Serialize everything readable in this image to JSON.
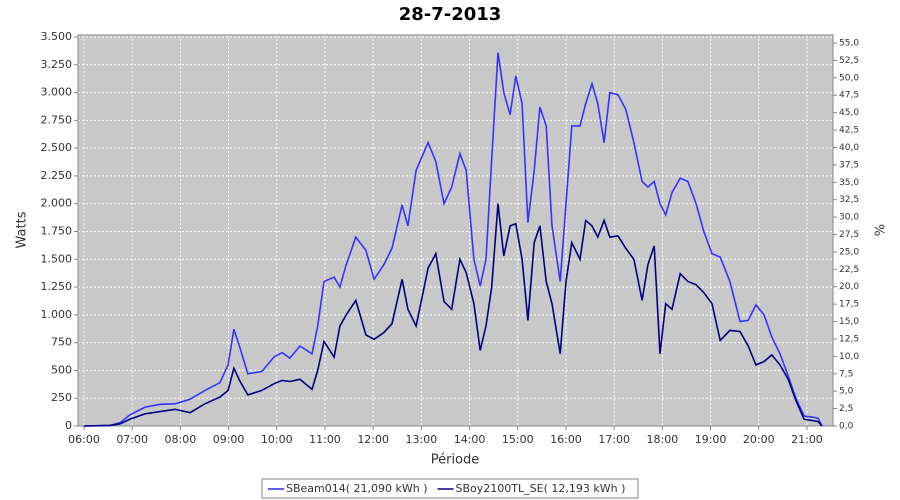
{
  "chart_data": {
    "type": "line",
    "title": "28-7-2013",
    "x_label": "Période",
    "y_label": "Watts",
    "y2_label": "%",
    "x": [
      6.0,
      6.54,
      6.75,
      6.95,
      7.27,
      7.58,
      7.89,
      8.2,
      8.51,
      8.82,
      8.99,
      9.11,
      9.24,
      9.4,
      9.69,
      9.94,
      10.11,
      10.27,
      10.48,
      10.73,
      10.85,
      10.98,
      11.19,
      11.31,
      11.44,
      11.64,
      11.85,
      12.02,
      12.22,
      12.39,
      12.6,
      12.72,
      12.89,
      13.14,
      13.3,
      13.47,
      13.63,
      13.8,
      13.93,
      14.09,
      14.22,
      14.34,
      14.46,
      14.59,
      14.71,
      14.84,
      14.96,
      15.09,
      15.21,
      15.34,
      15.46,
      15.59,
      15.71,
      15.88,
      16.0,
      16.12,
      16.29,
      16.41,
      16.54,
      16.66,
      16.79,
      16.91,
      17.08,
      17.24,
      17.41,
      17.58,
      17.7,
      17.83,
      17.95,
      18.07,
      18.2,
      18.37,
      18.53,
      18.7,
      18.86,
      19.03,
      19.2,
      19.4,
      19.61,
      19.78,
      19.94,
      20.11,
      20.27,
      20.44,
      20.61,
      20.77,
      20.94,
      21.1,
      21.23,
      21.31
    ],
    "series": [
      {
        "name": "SBeam014( 21,090 kWh )",
        "color": "#3333ff",
        "values": [
          0,
          5,
          30,
          100,
          170,
          195,
          200,
          240,
          320,
          390,
          550,
          870,
          700,
          470,
          490,
          620,
          660,
          610,
          720,
          650,
          900,
          1300,
          1340,
          1250,
          1450,
          1700,
          1580,
          1320,
          1450,
          1600,
          1990,
          1800,
          2300,
          2550,
          2380,
          2000,
          2150,
          2450,
          2300,
          1500,
          1260,
          1500,
          2400,
          3360,
          3000,
          2800,
          3150,
          2900,
          1830,
          2300,
          2870,
          2700,
          1800,
          1300,
          2000,
          2700,
          2700,
          2900,
          3080,
          2900,
          2550,
          3000,
          2980,
          2850,
          2550,
          2200,
          2150,
          2200,
          2000,
          1900,
          2100,
          2230,
          2200,
          2000,
          1750,
          1550,
          1520,
          1300,
          940,
          950,
          1090,
          1000,
          800,
          650,
          450,
          250,
          90,
          80,
          70,
          0
        ]
      },
      {
        "name": "SBoy2100TL_SE( 12,193 kWh )",
        "color": "#000080",
        "values": [
          0,
          5,
          20,
          60,
          110,
          130,
          150,
          120,
          200,
          260,
          320,
          520,
          400,
          280,
          320,
          380,
          410,
          400,
          420,
          330,
          500,
          760,
          620,
          900,
          1000,
          1130,
          820,
          780,
          840,
          920,
          1320,
          1050,
          900,
          1420,
          1550,
          1120,
          1050,
          1500,
          1380,
          1100,
          680,
          900,
          1250,
          2000,
          1530,
          1800,
          1820,
          1500,
          950,
          1650,
          1800,
          1300,
          1100,
          650,
          1300,
          1650,
          1500,
          1850,
          1800,
          1700,
          1850,
          1700,
          1710,
          1600,
          1500,
          1130,
          1450,
          1620,
          650,
          1100,
          1050,
          1370,
          1300,
          1270,
          1200,
          1100,
          770,
          860,
          850,
          720,
          550,
          580,
          640,
          550,
          420,
          230,
          60,
          50,
          40,
          0
        ]
      }
    ],
    "xlim": [
      5.876,
      21.54
    ],
    "xticks": [
      {
        "value": 6,
        "label": "06:00"
      },
      {
        "value": 7,
        "label": "07:00"
      },
      {
        "value": 8,
        "label": "08:00"
      },
      {
        "value": 9,
        "label": "09:00"
      },
      {
        "value": 10,
        "label": "10:00"
      },
      {
        "value": 11,
        "label": "11:00"
      },
      {
        "value": 12,
        "label": "12:00"
      },
      {
        "value": 13,
        "label": "13:00"
      },
      {
        "value": 14,
        "label": "14:00"
      },
      {
        "value": 15,
        "label": "15:00"
      },
      {
        "value": 16,
        "label": "16:00"
      },
      {
        "value": 17,
        "label": "17:00"
      },
      {
        "value": 18,
        "label": "18:00"
      },
      {
        "value": 19,
        "label": "19:00"
      },
      {
        "value": 20,
        "label": "20:00"
      },
      {
        "value": 21,
        "label": "21:00"
      }
    ],
    "ylim": [
      0,
      3518
    ],
    "yticks": [
      0,
      250,
      500,
      750,
      {
        "value": 1000,
        "label": "1.000"
      },
      {
        "value": 1250,
        "label": "1.250"
      },
      {
        "value": 1500,
        "label": "1.500"
      },
      {
        "value": 1750,
        "label": "1.750"
      },
      {
        "value": 2000,
        "label": "2.000"
      },
      {
        "value": 2250,
        "label": "2.250"
      },
      {
        "value": 2500,
        "label": "2.500"
      },
      {
        "value": 2750,
        "label": "2.750"
      },
      {
        "value": 3000,
        "label": "3.000"
      },
      {
        "value": 3250,
        "label": "3.250"
      },
      {
        "value": 3500,
        "label": "3.500"
      }
    ],
    "y2lim": [
      0,
      56.15
    ],
    "y2ticks": [
      {
        "value": 0,
        "label": "0,0"
      },
      {
        "value": 2.5,
        "label": "2,5"
      },
      {
        "value": 5,
        "label": "5,0"
      },
      {
        "value": 7.5,
        "label": "7,5"
      },
      {
        "value": 10,
        "label": "10,0"
      },
      {
        "value": 12.5,
        "label": "12,5"
      },
      {
        "value": 15,
        "label": "15,0"
      },
      {
        "value": 17.5,
        "label": "17,5"
      },
      {
        "value": 20,
        "label": "20,0"
      },
      {
        "value": 22.5,
        "label": "22,5"
      },
      {
        "value": 25,
        "label": "25,0"
      },
      {
        "value": 27.5,
        "label": "27,5"
      },
      {
        "value": 30,
        "label": "30,0"
      },
      {
        "value": 32.5,
        "label": "32,5"
      },
      {
        "value": 35,
        "label": "35,0"
      },
      {
        "value": 37.5,
        "label": "37,5"
      },
      {
        "value": 40,
        "label": "40,0"
      },
      {
        "value": 42.5,
        "label": "42,5"
      },
      {
        "value": 45,
        "label": "45,0"
      },
      {
        "value": 47.5,
        "label": "47,5"
      },
      {
        "value": 50,
        "label": "50,0"
      },
      {
        "value": 52.5,
        "label": "52,5"
      },
      {
        "value": 55,
        "label": "55,0"
      }
    ],
    "grid": true,
    "plot_background": "#c8c8c8",
    "legend_position": "bottom"
  }
}
